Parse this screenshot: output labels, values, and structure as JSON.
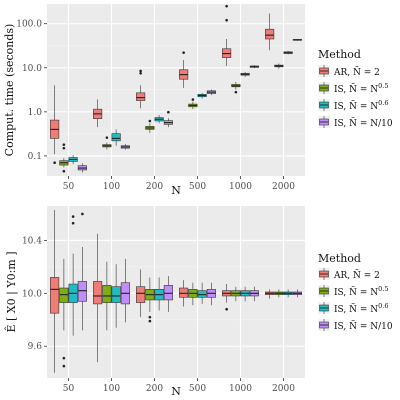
{
  "figure": {
    "legend_title": "Method",
    "methods": [
      {
        "key": "ar",
        "label": "AR, Ñ = 2",
        "color": "#ef7c76"
      },
      {
        "key": "is05",
        "label": "IS, Ñ = N^0.5",
        "color": "#7fad14"
      },
      {
        "key": "is06",
        "label": "IS, Ñ = N^0.6",
        "color": "#1fbdc3"
      },
      {
        "key": "is10",
        "label": "IS, Ñ = N/10",
        "color": "#c08dfc"
      }
    ],
    "chart_data": [
      {
        "type": "boxplot",
        "ylabel": "Comput. time (seconds)",
        "xlabel": "N",
        "categories": [
          "50",
          "100",
          "200",
          "500",
          "1000",
          "2000"
        ],
        "yscale": "log10",
        "ylim": [
          0.035,
          280
        ],
        "yticks": [
          0.1,
          1.0,
          10.0,
          100.0
        ],
        "yticklabels": [
          "0.1",
          "1.0",
          "10.0",
          "100.0"
        ],
        "series": [
          {
            "method": "ar",
            "boxes": [
              {
                "q1": 0.25,
                "median": 0.4,
                "q3": 0.65,
                "whislo": 0.11,
                "whishi": 4.0,
                "outliers": [
                  0.07
                ]
              },
              {
                "q1": 0.7,
                "median": 0.9,
                "q3": 1.15,
                "whislo": 0.45,
                "whishi": 1.9,
                "outliers": []
              },
              {
                "q1": 1.8,
                "median": 2.1,
                "q3": 2.7,
                "whislo": 1.2,
                "whishi": 4.0,
                "outliers": [
                  7.5,
                  8.5
                ]
              },
              {
                "q1": 5.5,
                "median": 7.0,
                "q3": 9.0,
                "whislo": 3.5,
                "whishi": 15.0,
                "outliers": [
                  22.0
                ]
              },
              {
                "q1": 17.0,
                "median": 21.0,
                "q3": 27.0,
                "whislo": 11.0,
                "whishi": 45.0,
                "outliers": [
                  120.0,
                  250.0
                ]
              },
              {
                "q1": 45.0,
                "median": 55.0,
                "q3": 75.0,
                "whislo": 25.0,
                "whishi": 170.0,
                "outliers": []
              }
            ]
          },
          {
            "method": "is05",
            "boxes": [
              {
                "q1": 0.062,
                "median": 0.07,
                "q3": 0.078,
                "whislo": 0.055,
                "whishi": 0.09,
                "outliers": [
                  0.15,
                  0.18,
                  0.045
                ]
              },
              {
                "q1": 0.16,
                "median": 0.17,
                "q3": 0.18,
                "whislo": 0.14,
                "whishi": 0.2,
                "outliers": [
                  0.26
                ]
              },
              {
                "q1": 0.4,
                "median": 0.43,
                "q3": 0.47,
                "whislo": 0.33,
                "whishi": 0.55,
                "outliers": [
                  0.62
                ]
              },
              {
                "q1": 1.3,
                "median": 1.4,
                "q3": 1.5,
                "whislo": 1.15,
                "whishi": 1.7,
                "outliers": [
                  1.9
                ]
              },
              {
                "q1": 3.7,
                "median": 3.9,
                "q3": 4.2,
                "whislo": 3.2,
                "whishi": 4.8,
                "outliers": [
                  2.8
                ]
              },
              {
                "q1": 10.5,
                "median": 11.0,
                "q3": 11.5,
                "whislo": 9.5,
                "whishi": 12.5,
                "outliers": []
              }
            ]
          },
          {
            "method": "is06",
            "boxes": [
              {
                "q1": 0.075,
                "median": 0.083,
                "q3": 0.092,
                "whislo": 0.065,
                "whishi": 0.105,
                "outliers": []
              },
              {
                "q1": 0.22,
                "median": 0.25,
                "q3": 0.32,
                "whislo": 0.17,
                "whishi": 0.4,
                "outliers": []
              },
              {
                "q1": 0.62,
                "median": 0.68,
                "q3": 0.74,
                "whislo": 0.55,
                "whishi": 0.85,
                "outliers": []
              },
              {
                "q1": 2.2,
                "median": 2.35,
                "q3": 2.5,
                "whislo": 2.0,
                "whishi": 2.7,
                "outliers": []
              },
              {
                "q1": 6.8,
                "median": 7.1,
                "q3": 7.5,
                "whislo": 6.2,
                "whishi": 8.0,
                "outliers": []
              },
              {
                "q1": 21.0,
                "median": 22.0,
                "q3": 23.0,
                "whislo": 20.0,
                "whishi": 24.0,
                "outliers": []
              }
            ]
          },
          {
            "method": "is10",
            "boxes": [
              {
                "q1": 0.048,
                "median": 0.053,
                "q3": 0.06,
                "whislo": 0.042,
                "whishi": 0.068,
                "outliers": []
              },
              {
                "q1": 0.15,
                "median": 0.16,
                "q3": 0.17,
                "whislo": 0.14,
                "whishi": 0.185,
                "outliers": []
              },
              {
                "q1": 0.52,
                "median": 0.57,
                "q3": 0.63,
                "whislo": 0.45,
                "whishi": 0.72,
                "outliers": [
                  0.98
                ]
              },
              {
                "q1": 2.6,
                "median": 2.8,
                "q3": 3.0,
                "whislo": 2.4,
                "whishi": 3.2,
                "outliers": []
              },
              {
                "q1": 10.2,
                "median": 10.6,
                "q3": 11.0,
                "whislo": 9.8,
                "whishi": 11.5,
                "outliers": []
              },
              {
                "q1": 42.0,
                "median": 43.0,
                "q3": 44.0,
                "whislo": 41.0,
                "whishi": 45.0,
                "outliers": []
              }
            ]
          }
        ]
      },
      {
        "type": "boxplot",
        "ylabel": "Ê [ X0 | Y0:m ]",
        "xlabel": "N",
        "categories": [
          "50",
          "100",
          "200",
          "500",
          "1000",
          "2000"
        ],
        "yscale": "linear",
        "ylim": [
          9.36,
          10.66
        ],
        "yticks": [
          9.6,
          10.0,
          10.4
        ],
        "yticklabels": [
          "9.6",
          "10.0",
          "10.4"
        ],
        "series": [
          {
            "method": "ar",
            "boxes": [
              {
                "q1": 9.85,
                "median": 10.03,
                "q3": 10.12,
                "whislo": 9.4,
                "whishi": 10.63,
                "outliers": []
              },
              {
                "q1": 9.92,
                "median": 9.98,
                "q3": 10.09,
                "whislo": 9.48,
                "whishi": 10.45,
                "outliers": []
              },
              {
                "q1": 9.93,
                "median": 10.0,
                "q3": 10.05,
                "whislo": 9.82,
                "whishi": 10.18,
                "outliers": []
              },
              {
                "q1": 9.97,
                "median": 10.0,
                "q3": 10.04,
                "whislo": 9.9,
                "whishi": 10.1,
                "outliers": []
              },
              {
                "q1": 9.98,
                "median": 10.0,
                "q3": 10.02,
                "whislo": 9.93,
                "whishi": 10.07,
                "outliers": [
                  9.88
                ]
              },
              {
                "q1": 9.99,
                "median": 10.0,
                "q3": 10.01,
                "whislo": 9.96,
                "whishi": 10.03,
                "outliers": []
              }
            ]
          },
          {
            "method": "is05",
            "boxes": [
              {
                "q1": 9.93,
                "median": 9.99,
                "q3": 10.04,
                "whislo": 9.72,
                "whishi": 10.26,
                "outliers": [
                  9.51,
                  9.45
                ]
              },
              {
                "q1": 9.93,
                "median": 9.98,
                "q3": 10.06,
                "whislo": 9.72,
                "whishi": 10.24,
                "outliers": []
              },
              {
                "q1": 9.95,
                "median": 9.99,
                "q3": 10.03,
                "whislo": 9.86,
                "whishi": 10.12,
                "outliers": [
                  9.82,
                  9.79
                ]
              },
              {
                "q1": 9.97,
                "median": 10.0,
                "q3": 10.03,
                "whislo": 9.91,
                "whishi": 10.08,
                "outliers": []
              },
              {
                "q1": 9.98,
                "median": 10.0,
                "q3": 10.02,
                "whislo": 9.94,
                "whishi": 10.05,
                "outliers": []
              },
              {
                "q1": 9.99,
                "median": 10.0,
                "q3": 10.01,
                "whislo": 9.97,
                "whishi": 10.03,
                "outliers": []
              }
            ]
          },
          {
            "method": "is06",
            "boxes": [
              {
                "q1": 9.93,
                "median": 10.0,
                "q3": 10.07,
                "whislo": 9.68,
                "whishi": 10.3,
                "outliers": [
                  10.58,
                  10.53
                ]
              },
              {
                "q1": 9.93,
                "median": 9.98,
                "q3": 10.05,
                "whislo": 9.74,
                "whishi": 10.22,
                "outliers": []
              },
              {
                "q1": 9.95,
                "median": 9.99,
                "q3": 10.03,
                "whislo": 9.87,
                "whishi": 10.12,
                "outliers": []
              },
              {
                "q1": 9.97,
                "median": 9.99,
                "q3": 10.02,
                "whislo": 9.92,
                "whishi": 10.08,
                "outliers": []
              },
              {
                "q1": 9.98,
                "median": 10.0,
                "q3": 10.02,
                "whislo": 9.94,
                "whishi": 10.05,
                "outliers": []
              },
              {
                "q1": 9.99,
                "median": 10.0,
                "q3": 10.01,
                "whislo": 9.97,
                "whishi": 10.03,
                "outliers": []
              }
            ]
          },
          {
            "method": "is10",
            "boxes": [
              {
                "q1": 9.94,
                "median": 10.02,
                "q3": 10.09,
                "whislo": 9.72,
                "whishi": 10.35,
                "outliers": [
                  10.6
                ]
              },
              {
                "q1": 9.92,
                "median": 10.0,
                "q3": 10.08,
                "whislo": 9.78,
                "whishi": 10.26,
                "outliers": []
              },
              {
                "q1": 9.95,
                "median": 10.0,
                "q3": 10.06,
                "whislo": 9.86,
                "whishi": 10.13,
                "outliers": []
              },
              {
                "q1": 9.97,
                "median": 10.0,
                "q3": 10.03,
                "whislo": 9.91,
                "whishi": 10.08,
                "outliers": []
              },
              {
                "q1": 9.98,
                "median": 10.0,
                "q3": 10.02,
                "whislo": 9.94,
                "whishi": 10.05,
                "outliers": []
              },
              {
                "q1": 9.99,
                "median": 10.0,
                "q3": 10.01,
                "whislo": 9.97,
                "whishi": 10.03,
                "outliers": []
              }
            ]
          }
        ]
      }
    ]
  }
}
